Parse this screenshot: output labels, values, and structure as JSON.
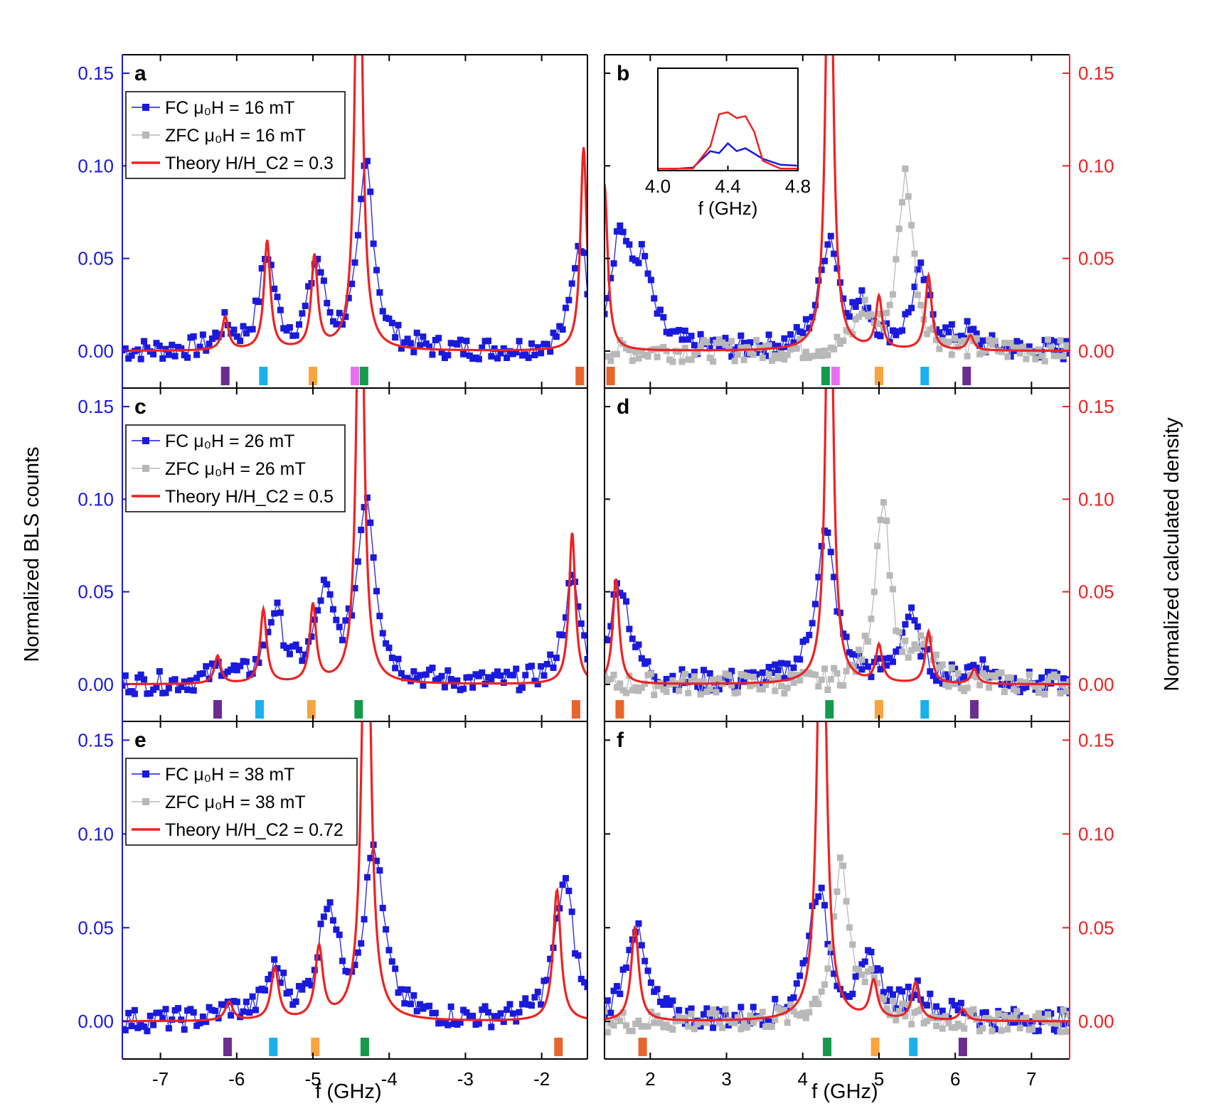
{
  "figure": {
    "xlabel": "f (GHz)",
    "ylabel_left": "Normalized BLS counts",
    "ylabel_right": "Normalized calculated density",
    "colors": {
      "fc": "#1a1adc",
      "zfc": "#b8b8b8",
      "theory": "#ee2222",
      "left_axis": "#1a1adc",
      "right_axis": "#ee2222"
    }
  },
  "chart_data": [
    {
      "panel": "a",
      "type": "line",
      "xlim": [
        -7.5,
        -1.4
      ],
      "ylim": [
        -0.02,
        0.16
      ],
      "yticks": [
        "0.00",
        "0.05",
        "0.10",
        "0.15"
      ],
      "legend": [
        "FC μ₀H = 16 mT",
        "ZFC μ₀H = 16 mT",
        "Theory H/H_C2 = 0.3"
      ],
      "series": [
        {
          "name": "FC μ₀H = 16 mT",
          "role": "fc",
          "peaks": [
            [
              -6.15,
              0.012
            ],
            [
              -5.6,
              0.05
            ],
            [
              -4.95,
              0.045
            ],
            [
              -4.3,
              0.1
            ],
            [
              -1.5,
              0.06
            ]
          ],
          "width": 0.12
        },
        {
          "name": "Theory H/H_C2 = 0.3",
          "role": "theory",
          "peaks": [
            [
              -6.15,
              0.018
            ],
            [
              -5.6,
              0.059
            ],
            [
              -4.98,
              0.05
            ],
            [
              -4.4,
              0.3
            ],
            [
              -1.45,
              0.11
            ]
          ],
          "width": 0.05
        }
      ],
      "markers": [
        [
          -6.15,
          "#6a2d91"
        ],
        [
          -5.65,
          "#1ab0ea"
        ],
        [
          -5.0,
          "#f6a53f"
        ],
        [
          -4.45,
          "#e870f0"
        ],
        [
          -4.33,
          "#159a4b"
        ],
        [
          -1.5,
          "#e8652e"
        ]
      ]
    },
    {
      "panel": "b",
      "type": "line",
      "xlim": [
        1.4,
        7.5
      ],
      "ylim": [
        -0.02,
        0.16
      ],
      "yticks": [
        "0.00",
        "0.05",
        "0.10",
        "0.15"
      ],
      "series": [
        {
          "role": "fc",
          "peaks": [
            [
              1.6,
              0.06
            ],
            [
              1.9,
              0.04
            ],
            [
              4.35,
              0.06
            ],
            [
              4.8,
              0.02
            ],
            [
              5.55,
              0.04
            ],
            [
              6.15,
              0.008
            ]
          ],
          "width": 0.15
        },
        {
          "role": "zfc",
          "peaks": [
            [
              4.8,
              0.02
            ],
            [
              5.35,
              0.095
            ]
          ],
          "width": 0.12
        },
        {
          "role": "theory",
          "peaks": [
            [
              1.4,
              0.09
            ],
            [
              4.35,
              0.3
            ],
            [
              5.0,
              0.028
            ],
            [
              5.65,
              0.04
            ],
            [
              6.2,
              0.008
            ]
          ],
          "width": 0.05
        }
      ],
      "markers": [
        [
          1.48,
          "#e8652e"
        ],
        [
          4.3,
          "#159a4b"
        ],
        [
          4.43,
          "#e870f0"
        ],
        [
          5.0,
          "#f6a53f"
        ],
        [
          5.6,
          "#1ab0ea"
        ],
        [
          6.15,
          "#6a2d91"
        ]
      ],
      "inset": {
        "xlim": [
          4.0,
          4.8
        ],
        "xticks": [
          "4.0",
          "4.4",
          "4.8"
        ],
        "xlabel": "f (GHz)",
        "fc": [
          [
            4.0,
            0.02
          ],
          [
            4.1,
            0.018
          ],
          [
            4.2,
            0.03
          ],
          [
            4.3,
            0.2
          ],
          [
            4.35,
            0.18
          ],
          [
            4.4,
            0.28
          ],
          [
            4.45,
            0.2
          ],
          [
            4.5,
            0.23
          ],
          [
            4.6,
            0.12
          ],
          [
            4.7,
            0.06
          ],
          [
            4.8,
            0.05
          ]
        ],
        "theory": [
          [
            4.0,
            0.02
          ],
          [
            4.2,
            0.02
          ],
          [
            4.3,
            0.25
          ],
          [
            4.35,
            0.58
          ],
          [
            4.4,
            0.6
          ],
          [
            4.45,
            0.54
          ],
          [
            4.5,
            0.56
          ],
          [
            4.55,
            0.4
          ],
          [
            4.6,
            0.1
          ],
          [
            4.7,
            0.02
          ],
          [
            4.8,
            0.02
          ]
        ]
      }
    },
    {
      "panel": "c",
      "type": "line",
      "xlim": [
        -7.5,
        -1.4
      ],
      "ylim": [
        -0.02,
        0.16
      ],
      "yticks": [
        "0.00",
        "0.05",
        "0.10",
        "0.15"
      ],
      "legend": [
        "FC μ₀H = 26 mT",
        "ZFC μ₀H = 26 mT",
        "Theory H/H_C2 = 0.5"
      ],
      "series": [
        {
          "role": "fc",
          "peaks": [
            [
              -6.2,
              0.008
            ],
            [
              -5.5,
              0.037
            ],
            [
              -4.85,
              0.045
            ],
            [
              -4.3,
              0.1
            ],
            [
              -1.6,
              0.055
            ]
          ],
          "width": 0.14
        },
        {
          "role": "theory",
          "peaks": [
            [
              -6.25,
              0.015
            ],
            [
              -5.65,
              0.04
            ],
            [
              -5.0,
              0.042
            ],
            [
              -4.38,
              0.3
            ],
            [
              -1.6,
              0.082
            ]
          ],
          "width": 0.05
        }
      ],
      "markers": [
        [
          -6.25,
          "#6a2d91"
        ],
        [
          -5.7,
          "#1ab0ea"
        ],
        [
          -5.02,
          "#f6a53f"
        ],
        [
          -4.4,
          "#159a4b"
        ],
        [
          -1.55,
          "#e8652e"
        ]
      ]
    },
    {
      "panel": "d",
      "type": "line",
      "xlim": [
        1.4,
        7.5
      ],
      "ylim": [
        -0.02,
        0.16
      ],
      "yticks": [
        "0.00",
        "0.05",
        "0.10",
        "0.15"
      ],
      "series": [
        {
          "role": "fc",
          "peaks": [
            [
              1.6,
              0.055
            ],
            [
              4.3,
              0.08
            ],
            [
              5.4,
              0.035
            ],
            [
              6.3,
              0.01
            ]
          ],
          "width": 0.16
        },
        {
          "role": "zfc",
          "peaks": [
            [
              5.05,
              0.1
            ],
            [
              5.6,
              0.02
            ]
          ],
          "width": 0.12
        },
        {
          "role": "theory",
          "peaks": [
            [
              1.55,
              0.057
            ],
            [
              4.35,
              0.3
            ],
            [
              5.0,
              0.02
            ],
            [
              5.65,
              0.028
            ],
            [
              6.25,
              0.008
            ]
          ],
          "width": 0.05
        }
      ],
      "markers": [
        [
          1.6,
          "#e8652e"
        ],
        [
          4.35,
          "#159a4b"
        ],
        [
          5.0,
          "#f6a53f"
        ],
        [
          5.6,
          "#1ab0ea"
        ],
        [
          6.25,
          "#6a2d91"
        ]
      ]
    },
    {
      "panel": "e",
      "type": "line",
      "xlim": [
        -7.5,
        -1.4
      ],
      "ylim": [
        -0.02,
        0.16
      ],
      "yticks": [
        "0.00",
        "0.05",
        "0.10",
        "0.15"
      ],
      "legend": [
        "FC μ₀H = 38 mT",
        "ZFC μ₀H = 38 mT",
        "Theory H/H_C2 = 0.72"
      ],
      "series": [
        {
          "role": "fc",
          "peaks": [
            [
              -6.1,
              0.005
            ],
            [
              -5.5,
              0.025
            ],
            [
              -4.8,
              0.06
            ],
            [
              -4.2,
              0.09
            ],
            [
              -1.7,
              0.075
            ]
          ],
          "width": 0.15
        },
        {
          "role": "theory",
          "peaks": [
            [
              -6.1,
              0.01
            ],
            [
              -5.5,
              0.028
            ],
            [
              -4.92,
              0.038
            ],
            [
              -4.3,
              0.3
            ],
            [
              -1.8,
              0.07
            ]
          ],
          "width": 0.06
        }
      ],
      "markers": [
        [
          -6.12,
          "#6a2d91"
        ],
        [
          -5.52,
          "#1ab0ea"
        ],
        [
          -4.97,
          "#f6a53f"
        ],
        [
          -4.32,
          "#159a4b"
        ],
        [
          -1.78,
          "#e8652e"
        ]
      ]
    },
    {
      "panel": "f",
      "type": "line",
      "xlim": [
        1.4,
        7.5
      ],
      "ylim": [
        -0.02,
        0.16
      ],
      "yticks": [
        "0.00",
        "0.05",
        "0.10",
        "0.15"
      ],
      "series": [
        {
          "role": "fc",
          "peaks": [
            [
              1.8,
              0.05
            ],
            [
              4.2,
              0.07
            ],
            [
              4.9,
              0.03
            ],
            [
              5.5,
              0.015
            ],
            [
              6.1,
              0.005
            ]
          ],
          "width": 0.16
        },
        {
          "role": "zfc",
          "peaks": [
            [
              4.5,
              0.08
            ],
            [
              4.9,
              0.02
            ]
          ],
          "width": 0.13
        },
        {
          "role": "theory",
          "peaks": [
            [
              1.8,
              0.05
            ],
            [
              4.25,
              0.3
            ],
            [
              4.93,
              0.02
            ],
            [
              5.48,
              0.02
            ],
            [
              6.1,
              0.006
            ]
          ],
          "width": 0.06
        }
      ],
      "markers": [
        [
          1.9,
          "#e8652e"
        ],
        [
          4.32,
          "#159a4b"
        ],
        [
          4.95,
          "#f6a53f"
        ],
        [
          5.45,
          "#1ab0ea"
        ],
        [
          6.1,
          "#6a2d91"
        ]
      ]
    }
  ]
}
